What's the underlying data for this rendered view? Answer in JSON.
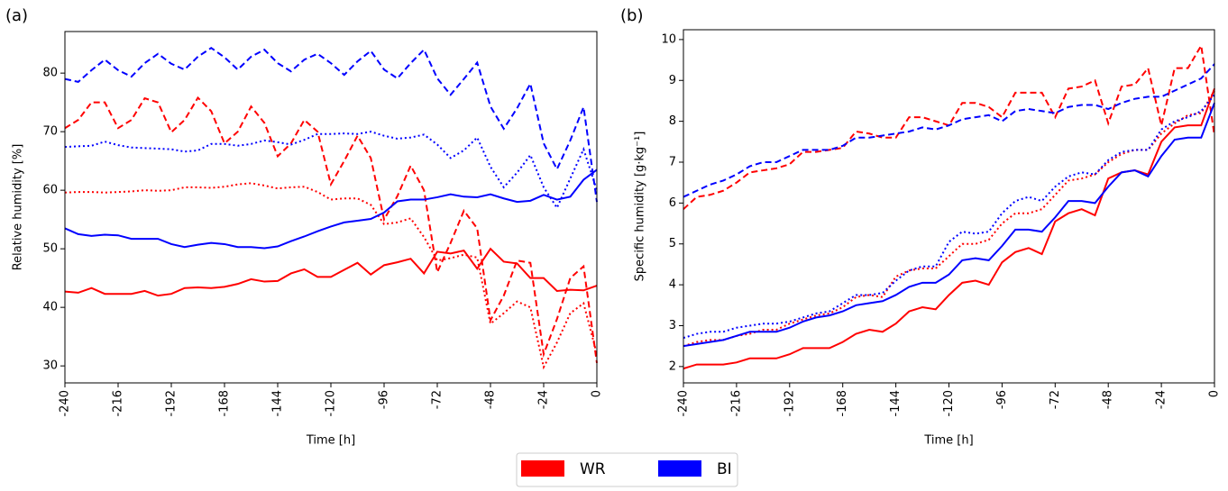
{
  "chart_data": [
    {
      "type": "line",
      "panel_label": "(a)",
      "x_label": "Time [h]",
      "y_label": "Relative humidity [%]",
      "x": [
        -240,
        -234,
        -228,
        -222,
        -216,
        -210,
        -204,
        -198,
        -192,
        -186,
        -180,
        -174,
        -168,
        -162,
        -156,
        -150,
        -144,
        -138,
        -132,
        -126,
        -120,
        -114,
        -108,
        -102,
        -96,
        -90,
        -84,
        -78,
        -72,
        -66,
        -60,
        -54,
        -48,
        -42,
        -36,
        -30,
        -24,
        -18,
        -12,
        -6,
        0
      ],
      "xlim": [
        -240,
        0
      ],
      "xticks": [
        -240,
        -216,
        -192,
        -168,
        -144,
        -120,
        -96,
        -72,
        -48,
        -24,
        0
      ],
      "ylim": [
        27.1,
        87.1
      ],
      "yticks": [
        30,
        40,
        50,
        60,
        70,
        80
      ],
      "series": [
        {
          "color": "#ff0000",
          "dash": "solid",
          "values": [
            42.7,
            42.5,
            43.3,
            42.3,
            42.3,
            42.3,
            42.8,
            42.0,
            42.3,
            43.3,
            43.4,
            43.3,
            43.5,
            44.0,
            44.8,
            44.4,
            44.5,
            45.8,
            46.5,
            45.2,
            45.2,
            46.4,
            47.6,
            45.6,
            47.2,
            47.7,
            48.3,
            45.8,
            49.5,
            49.2,
            49.7,
            46.6,
            50.0,
            47.8,
            47.5,
            45.0,
            45.0,
            42.8,
            43.0,
            42.9,
            43.7
          ]
        },
        {
          "color": "#ff0000",
          "dash": "dashed",
          "values": [
            70.6,
            72,
            75,
            75,
            70.6,
            72,
            75.7,
            75,
            69.9,
            72,
            75.8,
            73.5,
            68,
            70,
            74.3,
            71.5,
            65.8,
            68,
            72,
            70,
            61,
            65,
            69.3,
            65.5,
            55,
            59,
            64.2,
            60,
            46,
            51,
            56.5,
            53.5,
            37.8,
            42,
            48,
            47.6,
            32,
            38,
            45,
            47,
            30.5
          ]
        },
        {
          "color": "#ff0000",
          "dash": "dotted",
          "values": [
            59.6,
            59.7,
            59.7,
            59.6,
            59.7,
            59.8,
            60.0,
            59.9,
            60.0,
            60.5,
            60.5,
            60.4,
            60.6,
            61.0,
            61.2,
            60.8,
            60.3,
            60.5,
            60.6,
            59.7,
            58.4,
            58.6,
            58.6,
            57.5,
            54.2,
            54.5,
            55.2,
            52,
            48,
            48.4,
            49,
            48.5,
            37.2,
            39,
            41,
            40,
            29.8,
            34,
            39,
            40.7,
            32
          ]
        },
        {
          "color": "#0000ff",
          "dash": "solid",
          "values": [
            53.5,
            52.5,
            52.2,
            52.4,
            52.3,
            51.7,
            51.7,
            51.7,
            50.8,
            50.3,
            50.7,
            51.0,
            50.8,
            50.3,
            50.3,
            50.1,
            50.4,
            51.3,
            52.1,
            53.0,
            53.8,
            54.5,
            54.8,
            55.1,
            56.2,
            58.1,
            58.4,
            58.4,
            58.8,
            59.3,
            58.9,
            58.8,
            59.3,
            58.6,
            58.0,
            58.2,
            59.2,
            58.4,
            58.9,
            61.8,
            63.5
          ]
        },
        {
          "color": "#0000ff",
          "dash": "dashed",
          "values": [
            79,
            78.5,
            80.5,
            82.3,
            80.5,
            79.4,
            81.7,
            83.3,
            81.6,
            80.6,
            82.8,
            84.3,
            82.7,
            80.6,
            82.8,
            84,
            81.7,
            80.3,
            82.3,
            83.3,
            81.7,
            79.7,
            82,
            83.8,
            80.6,
            79.1,
            81.7,
            84,
            79.1,
            76.3,
            79,
            81.8,
            74.3,
            70.5,
            74,
            78.2,
            68,
            63.6,
            68.5,
            74.2,
            58
          ]
        },
        {
          "color": "#0000ff",
          "dash": "dotted",
          "values": [
            67.4,
            67.5,
            67.6,
            68.3,
            67.7,
            67.3,
            67.2,
            67.1,
            67.0,
            66.6,
            66.8,
            67.9,
            67.9,
            67.6,
            67.9,
            68.5,
            68.2,
            67.8,
            68.6,
            69.6,
            69.6,
            69.7,
            69.6,
            70.0,
            69.3,
            68.8,
            69.0,
            69.5,
            67.8,
            65.5,
            66.8,
            69,
            64,
            60.5,
            63,
            66,
            60.5,
            57,
            62,
            67,
            60
          ]
        }
      ]
    },
    {
      "type": "line",
      "panel_label": "(b)",
      "x_label": "Time [h]",
      "y_label": "Specific humidity [g·kg⁻¹]",
      "x": [
        -240,
        -234,
        -228,
        -222,
        -216,
        -210,
        -204,
        -198,
        -192,
        -186,
        -180,
        -174,
        -168,
        -162,
        -156,
        -150,
        -144,
        -138,
        -132,
        -126,
        -120,
        -114,
        -108,
        -102,
        -96,
        -90,
        -84,
        -78,
        -72,
        -66,
        -60,
        -54,
        -48,
        -42,
        -36,
        -30,
        -24,
        -18,
        -12,
        -6,
        0
      ],
      "xlim": [
        -240,
        0
      ],
      "xticks": [
        -240,
        -216,
        -192,
        -168,
        -144,
        -120,
        -96,
        -72,
        -48,
        -24,
        0
      ],
      "ylim": [
        1.6,
        10.24
      ],
      "yticks": [
        2,
        3,
        4,
        5,
        6,
        7,
        8,
        9,
        10
      ],
      "series": [
        {
          "color": "#ff0000",
          "dash": "solid",
          "values": [
            1.95,
            2.05,
            2.05,
            2.05,
            2.1,
            2.2,
            2.2,
            2.2,
            2.3,
            2.45,
            2.45,
            2.45,
            2.6,
            2.8,
            2.9,
            2.85,
            3.05,
            3.35,
            3.45,
            3.4,
            3.75,
            4.05,
            4.1,
            4.0,
            4.55,
            4.8,
            4.9,
            4.75,
            5.55,
            5.75,
            5.85,
            5.7,
            6.6,
            6.75,
            6.8,
            6.7,
            7.5,
            7.85,
            7.9,
            7.9,
            8.8
          ]
        },
        {
          "color": "#ff0000",
          "dash": "dashed",
          "values": [
            5.85,
            6.15,
            6.2,
            6.3,
            6.5,
            6.75,
            6.8,
            6.85,
            6.95,
            7.25,
            7.25,
            7.3,
            7.35,
            7.75,
            7.7,
            7.6,
            7.6,
            8.1,
            8.1,
            8.0,
            7.9,
            8.45,
            8.45,
            8.35,
            8.1,
            8.7,
            8.7,
            8.7,
            8.1,
            8.8,
            8.85,
            9.0,
            7.95,
            8.85,
            8.9,
            9.3,
            7.9,
            9.3,
            9.3,
            9.85,
            7.65
          ]
        },
        {
          "color": "#ff0000",
          "dash": "dotted",
          "values": [
            2.5,
            2.6,
            2.65,
            2.65,
            2.75,
            2.8,
            2.9,
            2.9,
            3.05,
            3.15,
            3.25,
            3.3,
            3.45,
            3.7,
            3.75,
            3.7,
            4.2,
            4.35,
            4.4,
            4.4,
            4.7,
            5.0,
            5.0,
            5.1,
            5.5,
            5.75,
            5.75,
            5.85,
            6.2,
            6.55,
            6.6,
            6.7,
            7.0,
            7.2,
            7.3,
            7.3,
            7.7,
            7.95,
            8.15,
            8.2,
            8.75
          ]
        },
        {
          "color": "#0000ff",
          "dash": "solid",
          "values": [
            2.5,
            2.55,
            2.6,
            2.65,
            2.75,
            2.85,
            2.85,
            2.85,
            2.95,
            3.1,
            3.2,
            3.25,
            3.35,
            3.5,
            3.55,
            3.6,
            3.75,
            3.95,
            4.05,
            4.05,
            4.25,
            4.6,
            4.65,
            4.6,
            4.95,
            5.35,
            5.35,
            5.3,
            5.65,
            6.05,
            6.05,
            6.0,
            6.4,
            6.75,
            6.8,
            6.65,
            7.15,
            7.55,
            7.6,
            7.6,
            8.45
          ]
        },
        {
          "color": "#0000ff",
          "dash": "dashed",
          "values": [
            6.15,
            6.3,
            6.45,
            6.55,
            6.7,
            6.9,
            7.0,
            7.0,
            7.15,
            7.3,
            7.3,
            7.3,
            7.4,
            7.6,
            7.6,
            7.65,
            7.7,
            7.75,
            7.85,
            7.8,
            7.9,
            8.05,
            8.1,
            8.15,
            8.0,
            8.25,
            8.3,
            8.25,
            8.2,
            8.35,
            8.4,
            8.4,
            8.3,
            8.45,
            8.55,
            8.6,
            8.6,
            8.75,
            8.9,
            9.05,
            9.4
          ]
        },
        {
          "color": "#0000ff",
          "dash": "dotted",
          "values": [
            2.7,
            2.8,
            2.85,
            2.85,
            2.95,
            3.0,
            3.05,
            3.05,
            3.1,
            3.2,
            3.3,
            3.35,
            3.55,
            3.75,
            3.75,
            3.8,
            4.1,
            4.35,
            4.45,
            4.45,
            5.05,
            5.3,
            5.25,
            5.3,
            5.75,
            6.05,
            6.15,
            6.05,
            6.4,
            6.65,
            6.75,
            6.7,
            7.05,
            7.25,
            7.3,
            7.3,
            7.8,
            8.0,
            8.1,
            8.25,
            8.65
          ]
        }
      ]
    }
  ],
  "legend": [
    {
      "name": "WR",
      "color": "#ff0000"
    },
    {
      "name": "BI",
      "color": "#0000ff"
    }
  ]
}
